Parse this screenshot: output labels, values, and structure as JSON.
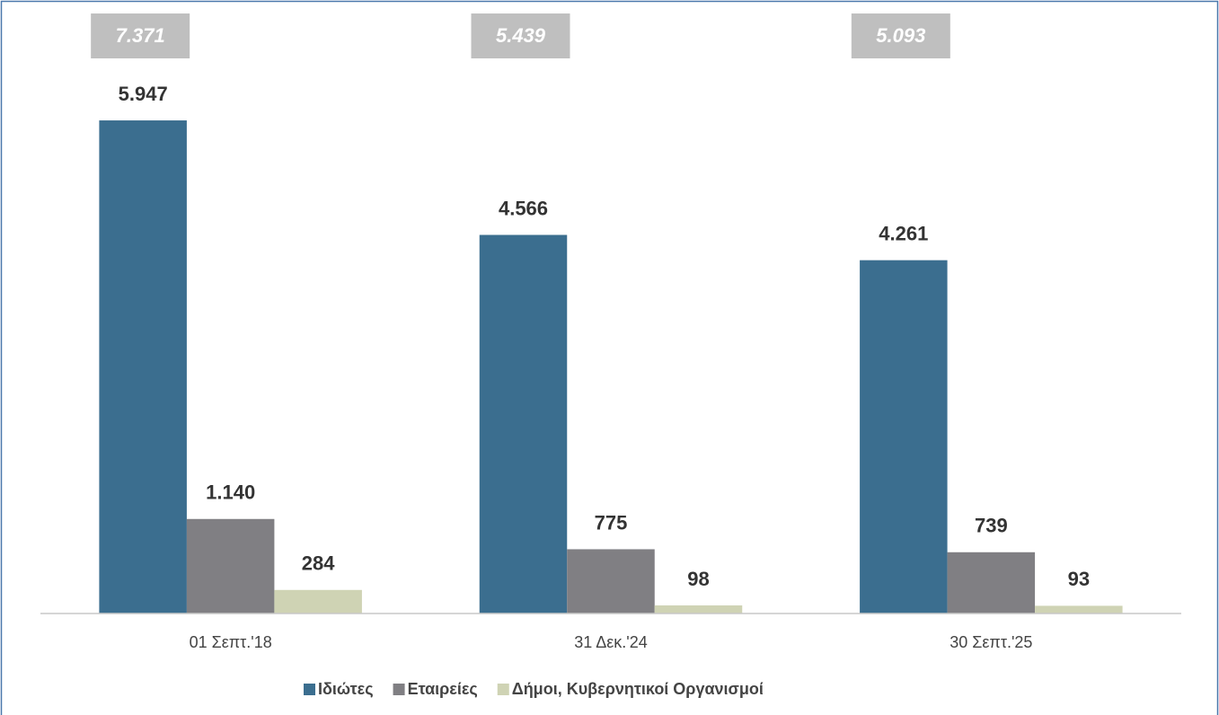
{
  "chart_data": {
    "type": "bar",
    "categories": [
      "01 Σεπτ.'18",
      "31 Δεκ.'24",
      "30 Σεπτ.'25"
    ],
    "series": [
      {
        "name": "Ιδιώτες",
        "color": "#3b6e8f",
        "values": [
          5947,
          4566,
          4261
        ],
        "value_labels": [
          "5.947",
          "4.566",
          "4.261"
        ]
      },
      {
        "name": "Εταιρείες",
        "color": "#807f83",
        "values": [
          1140,
          775,
          739
        ],
        "value_labels": [
          "1.140",
          "775",
          "739"
        ]
      },
      {
        "name": "Δήμοι, Κυβερνητικοί Οργανισμοί",
        "color": "#cfd3b4",
        "values": [
          284,
          98,
          93
        ],
        "value_labels": [
          "284",
          "98",
          "93"
        ]
      }
    ],
    "totals": [
      7371,
      5439,
      5093
    ],
    "total_labels": [
      "7.371",
      "5.439",
      "5.093"
    ],
    "total_color": "#bfbfbf",
    "ylim": [
      0,
      6500
    ],
    "legend": "bottom"
  }
}
